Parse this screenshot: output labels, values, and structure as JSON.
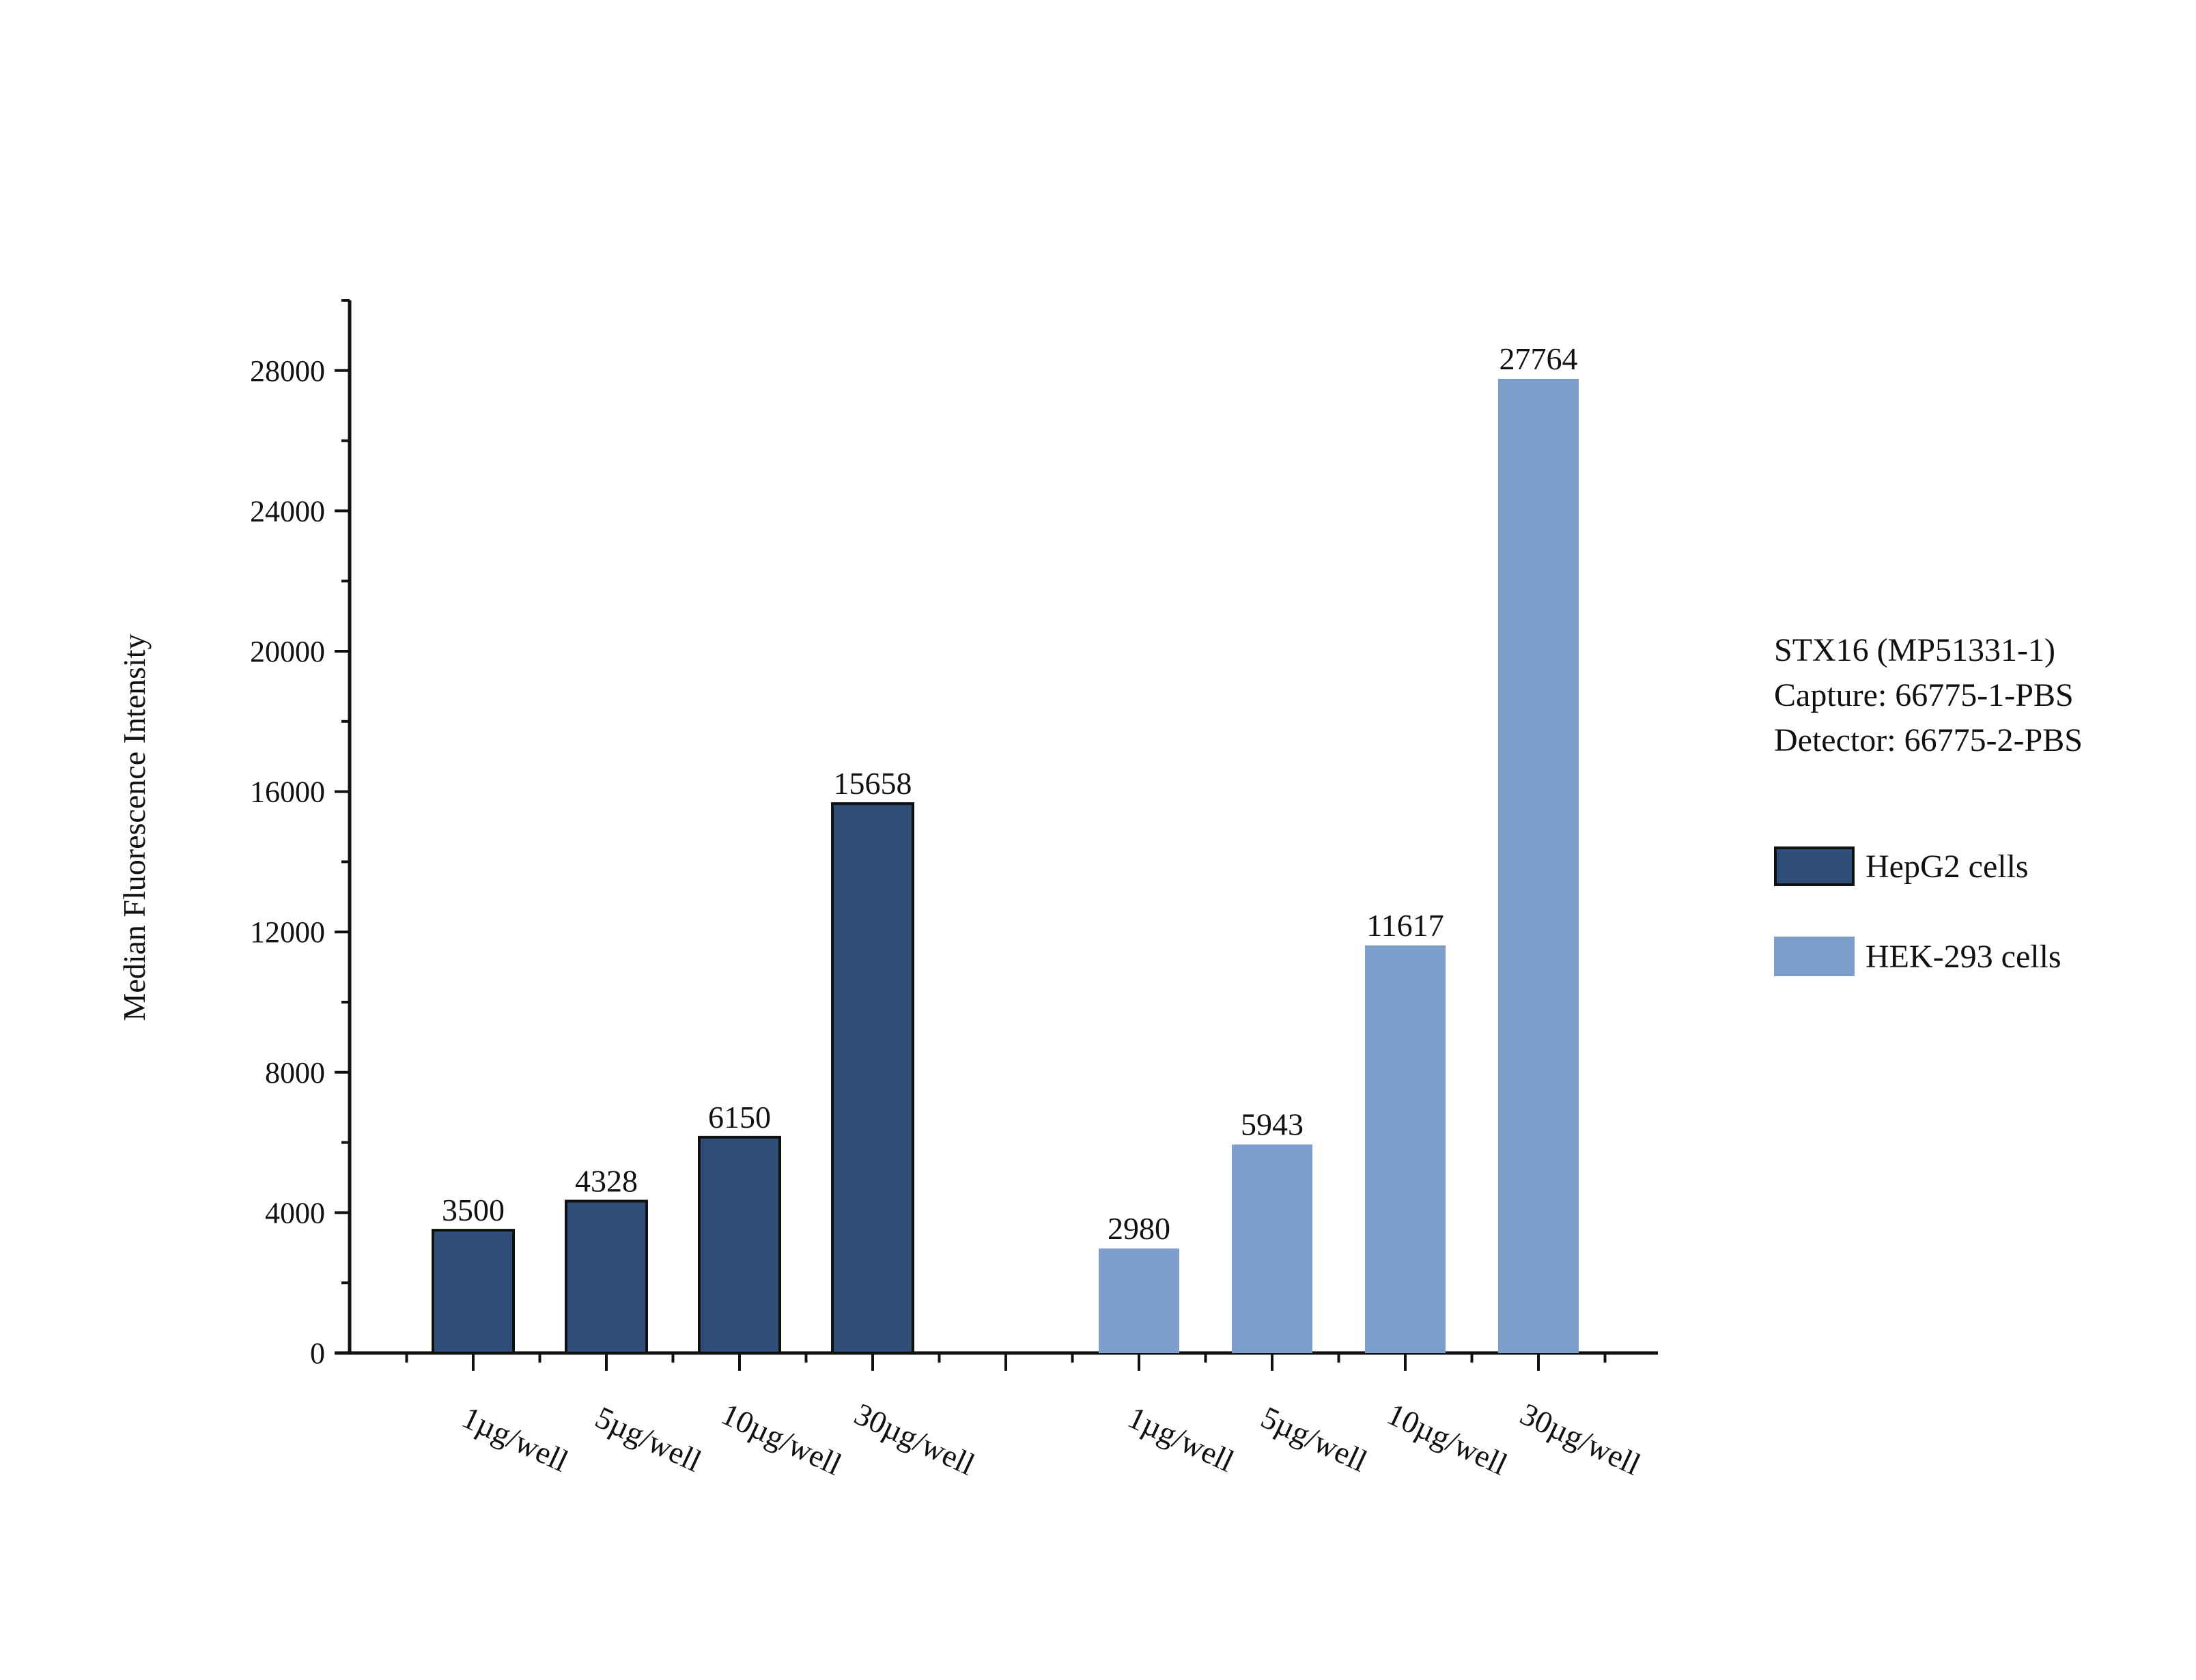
{
  "chart_data": {
    "type": "bar",
    "title": "",
    "xlabel": "",
    "ylabel": "Median Fluorescence Intensity",
    "ylim": [
      0,
      30000
    ],
    "yticks": [
      0,
      4000,
      8000,
      12000,
      16000,
      20000,
      24000,
      28000
    ],
    "grid": false,
    "series": [
      {
        "name": "HepG2 cells",
        "color": "#2f4e77",
        "edge": "#111111",
        "categories": [
          "1µg/well",
          "5µg/well",
          "10µg/well",
          "30µg/well"
        ],
        "values": [
          3500,
          4328,
          6150,
          15658
        ]
      },
      {
        "name": "HEK-293 cells",
        "color": "#7d9ecb",
        "edge": "#7d9ecb",
        "categories": [
          "1µg/well",
          "5µg/well",
          "10µg/well",
          "30µg/well"
        ],
        "values": [
          2980,
          5943,
          11617,
          27764
        ]
      }
    ],
    "legend_position": "right"
  },
  "info": {
    "line1": "STX16 (MP51331-1)",
    "line2": "Capture: 66775-1-PBS",
    "line3": "Detector: 66775-2-PBS"
  }
}
